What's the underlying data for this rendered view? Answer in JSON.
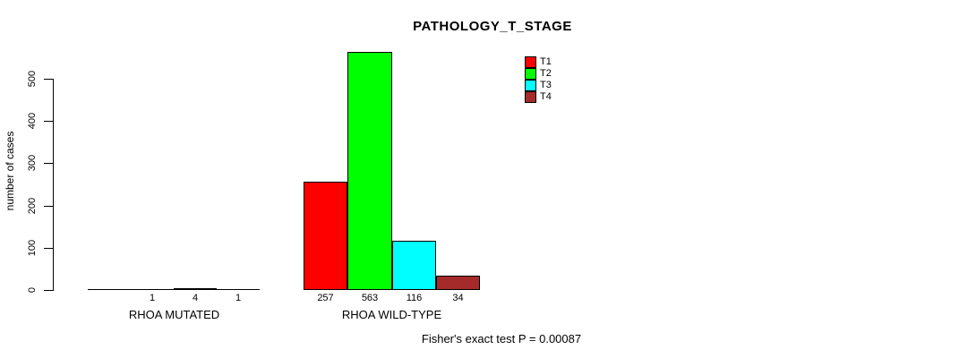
{
  "title": "PATHOLOGY_T_STAGE",
  "y_axis": {
    "label": "number of cases",
    "ticks": [
      0,
      100,
      200,
      300,
      400,
      500
    ]
  },
  "footer": "Fisher's exact test P = 0.00087",
  "legend": [
    {
      "label": "T1",
      "color": "#ff0000"
    },
    {
      "label": "T2",
      "color": "#00ff00"
    },
    {
      "label": "T3",
      "color": "#00ffff"
    },
    {
      "label": "T4",
      "color": "#a52a2a"
    }
  ],
  "chart_data": {
    "type": "bar",
    "title": "PATHOLOGY_T_STAGE",
    "xlabel": "",
    "ylabel": "number of cases",
    "ylim": [
      0,
      563
    ],
    "yticks": [
      0,
      100,
      200,
      300,
      400,
      500
    ],
    "grid": false,
    "legend_position": "top-right",
    "categories": [
      "RHOA MUTATED",
      "RHOA WILD-TYPE"
    ],
    "series": [
      {
        "name": "T1",
        "color": "#ff0000",
        "values": [
          0,
          257
        ]
      },
      {
        "name": "T2",
        "color": "#00ff00",
        "values": [
          1,
          563
        ]
      },
      {
        "name": "T3",
        "color": "#00ffff",
        "values": [
          4,
          116
        ]
      },
      {
        "name": "T4",
        "color": "#a52a2a",
        "values": [
          1,
          34
        ]
      }
    ],
    "bar_labels": [
      [
        "",
        "1",
        "4",
        "1"
      ],
      [
        "257",
        "563",
        "116",
        "34"
      ]
    ],
    "annotation": "Fisher's exact test P = 0.00087"
  }
}
